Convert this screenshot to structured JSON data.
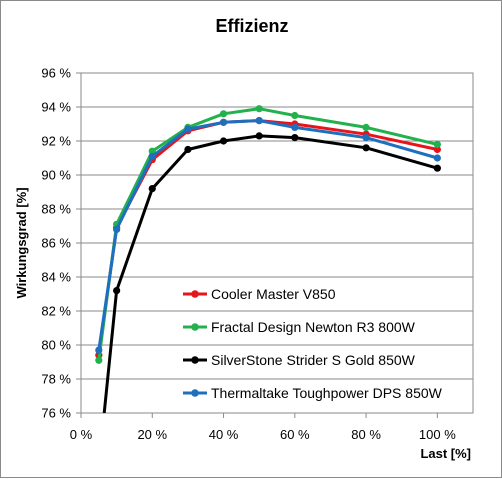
{
  "chart_data": {
    "type": "line",
    "title": "Effizienz",
    "xlabel": "Last [%]",
    "ylabel": "Wirkungsgrad [%]",
    "xlim": [
      0,
      110
    ],
    "ylim": [
      76,
      96
    ],
    "x_ticks": [
      "0 %",
      "20 %",
      "40 %",
      "60 %",
      "80 %",
      "100 %"
    ],
    "x_tick_values": [
      0,
      20,
      40,
      60,
      80,
      100
    ],
    "y_ticks": [
      "76 %",
      "78 %",
      "80 %",
      "82 %",
      "84 %",
      "86 %",
      "88 %",
      "90 %",
      "92 %",
      "94 %",
      "96 %"
    ],
    "y_tick_values": [
      76,
      78,
      80,
      82,
      84,
      86,
      88,
      90,
      92,
      94,
      96
    ],
    "grid": "horizontal",
    "legend_position": "bottom-right",
    "series": [
      {
        "name": "Cooler Master V850",
        "color": "#e8141b",
        "x": [
          5,
          10,
          20,
          30,
          40,
          50,
          60,
          80,
          100
        ],
        "y": [
          79.4,
          86.9,
          90.9,
          92.6,
          93.1,
          93.2,
          93.0,
          92.4,
          91.5
        ]
      },
      {
        "name": "Fractal Design Newton R3 800W",
        "color": "#22b14c",
        "x": [
          5,
          10,
          20,
          30,
          40,
          50,
          60,
          80,
          100
        ],
        "y": [
          79.1,
          87.1,
          91.4,
          92.8,
          93.6,
          93.9,
          93.5,
          92.8,
          91.8
        ]
      },
      {
        "name": "SilverStone Strider S Gold 850W",
        "color": "#000000",
        "x": [
          6.5,
          10,
          20,
          30,
          40,
          50,
          60,
          80,
          100
        ],
        "y": [
          76.0,
          83.2,
          89.2,
          91.5,
          92.0,
          92.3,
          92.2,
          91.6,
          90.4
        ]
      },
      {
        "name": "Thermaltake Toughpower DPS 850W",
        "color": "#1f6fbf",
        "x": [
          5,
          10,
          20,
          30,
          40,
          50,
          60,
          80,
          100
        ],
        "y": [
          79.7,
          86.8,
          91.1,
          92.7,
          93.1,
          93.2,
          92.8,
          92.2,
          91.0
        ]
      }
    ]
  }
}
